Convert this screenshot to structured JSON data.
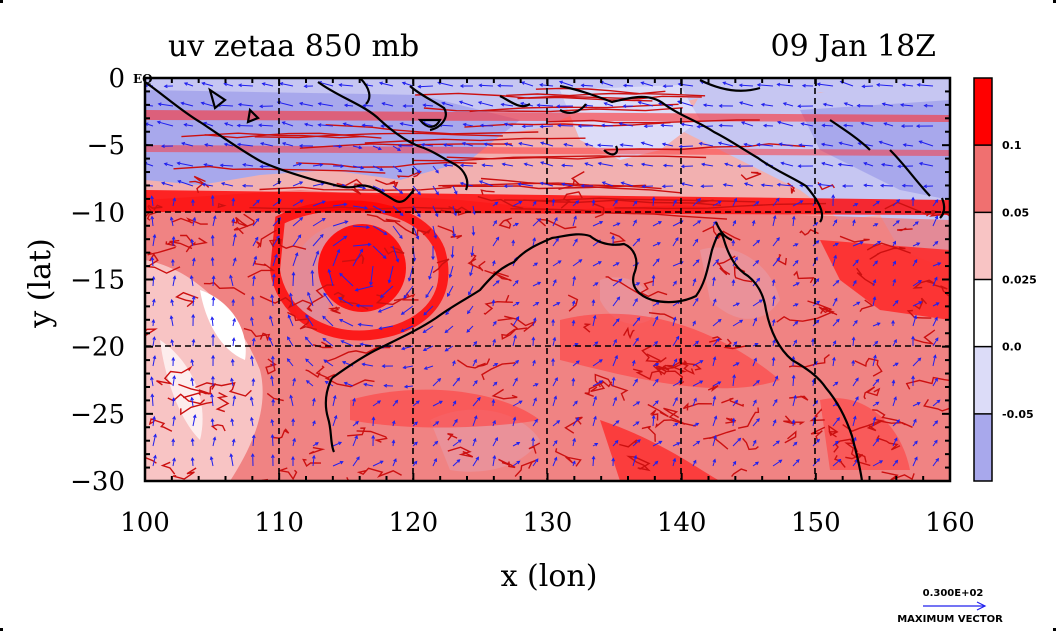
{
  "chart_data": {
    "type": "heatmap",
    "title": "uv zetaa 850 mb",
    "time_label": "09 Jan 18Z",
    "xlabel": "x (lon)",
    "ylabel": "y (lat)",
    "xlim": [
      100,
      160
    ],
    "ylim": [
      -30,
      0
    ],
    "x_ticks": [
      "100",
      "110",
      "120",
      "130",
      "140",
      "150",
      "160"
    ],
    "y_ticks": [
      "0",
      "−5",
      "−10",
      "−15",
      "−20",
      "−25",
      "−30"
    ],
    "grid": true,
    "equator_label": "EQ",
    "colorbar": {
      "levels": [
        "0.1",
        "0.05",
        "0.025",
        "0.0",
        "-0.05"
      ],
      "colors": [
        "#ff0000",
        "#f07070",
        "#f8c4c4",
        "#ffffff",
        "#dcdcf8",
        "#a8a8ec"
      ]
    },
    "colors": {
      "strong_positive": "#ff0000",
      "positive": "#f07070",
      "weak_positive": "#f8c4c4",
      "neutral": "#ffffff",
      "weak_negative": "#dcdcf8",
      "negative": "#a8a8ec",
      "contour": "#cc1010",
      "coastline": "#000000",
      "vectors": "#2020ee"
    },
    "reference_vector": {
      "value": "0.300E+02",
      "label": "MAXIMUM VECTOR"
    }
  }
}
